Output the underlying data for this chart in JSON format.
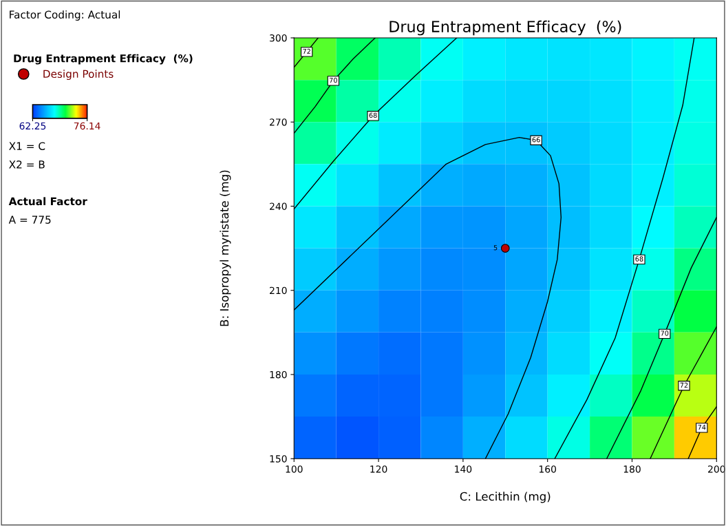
{
  "chart_data": {
    "type": "heatmap",
    "title": "Drug Entrapment Efficacy  (%)",
    "xlabel": "C: Lecithin (mg)",
    "ylabel": "B: Isopropyl myristate (mg)",
    "x": [
      105,
      115,
      125,
      135,
      145,
      155,
      165,
      175,
      185,
      195
    ],
    "y": [
      292.5,
      277.5,
      262.5,
      247.5,
      232.5,
      217.5,
      202.5,
      187.5,
      172.5,
      157.5
    ],
    "cells": [
      [
        71.5,
        70.1,
        68.9,
        68.0,
        67.4,
        67.1,
        67.0,
        67.1,
        67.5,
        68.0
      ],
      [
        70.3,
        69.1,
        68.1,
        67.3,
        66.8,
        66.6,
        66.6,
        66.9,
        67.3,
        68.1
      ],
      [
        69.2,
        68.1,
        67.2,
        66.5,
        66.1,
        66.0,
        66.3,
        66.7,
        67.3,
        68.2
      ],
      [
        68.0,
        67.0,
        66.1,
        65.5,
        65.3,
        65.5,
        66.0,
        66.7,
        67.4,
        68.4
      ],
      [
        67.1,
        66.1,
        65.3,
        64.8,
        64.7,
        65.2,
        65.9,
        66.7,
        67.7,
        68.8
      ],
      [
        66.3,
        65.4,
        64.8,
        64.4,
        64.5,
        65.2,
        66.0,
        67.0,
        68.1,
        69.6
      ],
      [
        65.4,
        64.7,
        64.2,
        64.1,
        64.5,
        65.4,
        66.4,
        67.4,
        68.7,
        70.5
      ],
      [
        64.6,
        63.9,
        63.6,
        63.9,
        64.6,
        65.7,
        66.8,
        67.9,
        69.5,
        71.5
      ],
      [
        63.9,
        63.3,
        63.3,
        63.9,
        64.9,
        66.1,
        67.4,
        68.7,
        70.4,
        72.6
      ],
      [
        63.3,
        62.9,
        63.2,
        64.3,
        65.5,
        66.8,
        68.2,
        69.8,
        71.7,
        74.0
      ]
    ],
    "clim": [
      62.25,
      76.14
    ],
    "cticks": [
      62.25,
      76.14
    ],
    "xlim": [
      100,
      200
    ],
    "xticks": [
      100,
      120,
      140,
      160,
      180,
      200
    ],
    "ylim": [
      150,
      300
    ],
    "yticks": [
      150,
      180,
      210,
      240,
      270,
      300
    ],
    "series": [
      {
        "type": "line",
        "marker": "none",
        "color": "#000000",
        "x": [
          100,
          103,
          105.7
        ],
        "values": [
          289.5,
          295,
          300
        ]
      },
      {
        "type": "line",
        "marker": "none",
        "color": "#000000",
        "x": [
          100,
          105,
          109.3,
          114,
          119.2
        ],
        "values": [
          266,
          275.5,
          284.7,
          292.5,
          300
        ]
      },
      {
        "type": "line",
        "marker": "none",
        "color": "#000000",
        "x": [
          100,
          109.3,
          118.7,
          128.7,
          138.5
        ],
        "values": [
          239,
          256,
          272.2,
          286.5,
          300
        ]
      },
      {
        "type": "line",
        "marker": "none",
        "color": "#000000",
        "x": [
          100,
          118.7,
          136,
          145.3,
          153.3,
          157.3,
          160.7,
          162.7,
          163.2,
          162.3,
          160,
          156,
          150.7,
          145.3
        ],
        "values": [
          203,
          230,
          255,
          262,
          264.5,
          263.5,
          258,
          248,
          236,
          221,
          206,
          186,
          166,
          150
        ]
      },
      {
        "type": "line",
        "marker": "none",
        "color": "#000000",
        "x": [
          161.7,
          169.3,
          176,
          181.7,
          187.3,
          192,
          194.7
        ],
        "values": [
          150,
          171,
          193,
          221,
          250,
          276,
          300
        ]
      },
      {
        "type": "line",
        "marker": "none",
        "color": "#000000",
        "x": [
          174,
          182,
          187.7,
          194,
          200
        ],
        "values": [
          150,
          174,
          194.5,
          218,
          236
        ]
      },
      {
        "type": "line",
        "marker": "none",
        "color": "#000000",
        "x": [
          184.3,
          192.3,
          200
        ],
        "values": [
          150,
          176,
          197
        ]
      },
      {
        "type": "line",
        "marker": "none",
        "color": "#000000",
        "x": [
          193.3,
          196.5,
          200
        ],
        "values": [
          150,
          161,
          168.5
        ]
      },
      {
        "name": "Design Points",
        "type": "scatter",
        "color": "#c00000",
        "x": [
          150
        ],
        "values": [
          225
        ]
      }
    ],
    "marker": "circle",
    "legend": "left",
    "legend_title": "Drug Entrapment Efficacy  (%)",
    "grid": false,
    "annotations": [
      "Factor Coding: Actual",
      "X1 = C",
      "X2 = B",
      "Actual Factor",
      "A = 775",
      {
        "text": "5",
        "x": 150,
        "y": 225
      },
      {
        "text": "72",
        "x": 103,
        "y": 295
      },
      {
        "text": "70",
        "x": 109.3,
        "y": 284.7
      },
      {
        "text": "68",
        "x": 118.7,
        "y": 272.2
      },
      {
        "text": "66",
        "x": 157.3,
        "y": 263.5
      },
      {
        "text": "68",
        "x": 181.7,
        "y": 221
      },
      {
        "text": "70",
        "x": 187.7,
        "y": 194.5
      },
      {
        "text": "72",
        "x": 192.3,
        "y": 176
      },
      {
        "text": "74",
        "x": 196.5,
        "y": 161
      }
    ]
  }
}
